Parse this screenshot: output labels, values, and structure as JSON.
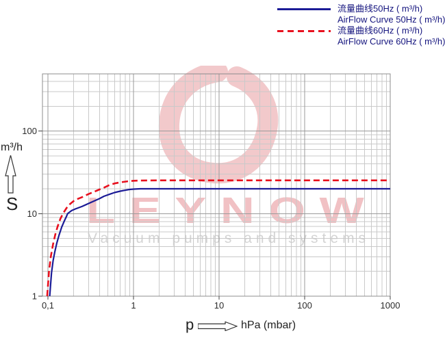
{
  "legend": {
    "items": [
      {
        "label_cn": "流量曲线50Hz ( m³/h)",
        "label_en": "AirFlow Curve 50Hz ( m³/h)",
        "color": "#1b1b96",
        "line_style": "solid"
      },
      {
        "label_cn": "流量曲线60Hz ( m³/h)",
        "label_en": "AirFlow Curve 60Hz ( m³/h)",
        "color": "#e8101e",
        "line_style": "dashed"
      }
    ]
  },
  "axes": {
    "y_unit": "m³/h",
    "y_symbol": "S",
    "x_symbol": "p",
    "x_unit": "hPa (mbar)"
  },
  "watermark": {
    "brand": "LEYNOW",
    "tagline": "Vacuum pumps and systems"
  },
  "colors": {
    "curve_50hz": "#1b1b96",
    "curve_60hz": "#e8101e",
    "grid_major": "#9a9a9a",
    "grid_minor": "#c9c9c9",
    "plot_border": "#8c8c8c",
    "axis_text": "#2b2b2b",
    "legend_text": "#14147e",
    "watermark_swirl": "rgba(205,45,55,0.26)",
    "watermark_brand": "rgba(210,50,60,0.30)",
    "watermark_gray": "#d4d4d4"
  },
  "chart_data": {
    "type": "line",
    "x_scale": "log",
    "y_scale": "log",
    "xlabel": "p  hPa (mbar)",
    "ylabel": "S  m³/h",
    "xlim": [
      0.0863,
      1000
    ],
    "ylim": [
      1,
      493
    ],
    "grid": "log-log major+minor",
    "legend_position": "top-right",
    "x_major": [
      0.1,
      1,
      10,
      100,
      1000
    ],
    "y_major": [
      1,
      10,
      100
    ],
    "x_ticks": [
      {
        "v": 0.1,
        "label": "0,1"
      },
      {
        "v": 1,
        "label": "1"
      },
      {
        "v": 10,
        "label": "10"
      },
      {
        "v": 100,
        "label": "100"
      },
      {
        "v": 1000,
        "label": "1000"
      }
    ],
    "y_ticks": [
      {
        "v": 100,
        "label": "100"
      },
      {
        "v": 10,
        "label": "10"
      },
      {
        "v": 1,
        "label": "1"
      }
    ],
    "series": [
      {
        "name": "AirFlow Curve 50Hz (m³/h)",
        "color_key": "curve_50hz",
        "dash": null,
        "max_flow": 20,
        "points": [
          [
            0.105,
            1
          ],
          [
            0.11,
            1.9
          ],
          [
            0.115,
            2.7
          ],
          [
            0.12,
            3.4
          ],
          [
            0.127,
            4.4
          ],
          [
            0.135,
            5.5
          ],
          [
            0.145,
            6.9
          ],
          [
            0.155,
            8.1
          ],
          [
            0.165,
            9.3
          ],
          [
            0.17,
            10
          ],
          [
            0.19,
            10.9
          ],
          [
            0.21,
            11.4
          ],
          [
            0.25,
            12.2
          ],
          [
            0.3,
            13.3
          ],
          [
            0.35,
            14.3
          ],
          [
            0.4,
            15.2
          ],
          [
            0.45,
            16.2
          ],
          [
            0.52,
            17.1
          ],
          [
            0.6,
            18
          ],
          [
            0.7,
            18.7
          ],
          [
            0.8,
            19.2
          ],
          [
            0.9,
            19.6
          ],
          [
            1,
            19.8
          ],
          [
            1.2,
            20
          ],
          [
            2,
            20
          ],
          [
            5,
            20
          ],
          [
            10,
            20
          ],
          [
            50,
            20
          ],
          [
            100,
            20
          ],
          [
            500,
            20
          ],
          [
            1000,
            20
          ]
        ]
      },
      {
        "name": "AirFlow Curve 60Hz (m³/h)",
        "color_key": "curve_60hz",
        "dash": "9 5",
        "max_flow": 25.3,
        "points": [
          [
            0.098,
            1
          ],
          [
            0.103,
            2
          ],
          [
            0.108,
            3
          ],
          [
            0.115,
            4.3
          ],
          [
            0.122,
            5.6
          ],
          [
            0.13,
            7
          ],
          [
            0.14,
            8.7
          ],
          [
            0.15,
            10
          ],
          [
            0.165,
            11.7
          ],
          [
            0.18,
            13
          ],
          [
            0.2,
            14.2
          ],
          [
            0.22,
            15
          ],
          [
            0.25,
            15.8
          ],
          [
            0.3,
            17.3
          ],
          [
            0.35,
            18.5
          ],
          [
            0.4,
            19.6
          ],
          [
            0.45,
            20.6
          ],
          [
            0.52,
            22.1
          ],
          [
            0.6,
            23.2
          ],
          [
            0.7,
            23.9
          ],
          [
            0.85,
            24.6
          ],
          [
            1,
            25
          ],
          [
            1.2,
            25.2
          ],
          [
            2,
            25.3
          ],
          [
            5,
            25.3
          ],
          [
            10,
            25.3
          ],
          [
            50,
            25.3
          ],
          [
            100,
            25.3
          ],
          [
            500,
            25.3
          ],
          [
            1000,
            25.3
          ]
        ]
      }
    ]
  }
}
